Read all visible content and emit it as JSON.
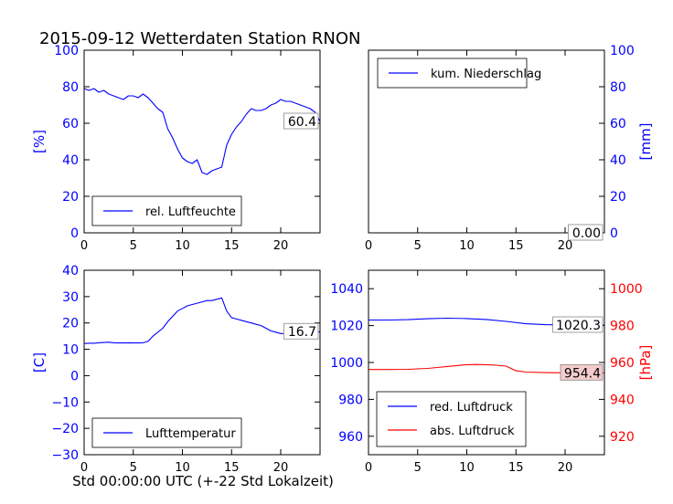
{
  "title": "2015-09-12 Wetterdaten Station RNON",
  "footer_xlabel": "Std 00:00:00 UTC (+-22 Std Lokalzeit)",
  "colors": {
    "blue": "#0000ff",
    "red": "#ff0000",
    "black": "#000000",
    "annotation_bg": "#f4cccc"
  },
  "chart_data": [
    {
      "id": "humidity",
      "type": "line",
      "ylabel": "[%]",
      "ylabel_color": "#0000ff",
      "xlim": [
        0,
        24
      ],
      "ylim": [
        0,
        100
      ],
      "xticks": [
        "0",
        "5",
        "10",
        "15",
        "20"
      ],
      "yticks": [
        "0",
        "20",
        "40",
        "60",
        "80",
        "100"
      ],
      "ytick_color": "#0000ff",
      "legend": {
        "placement": "lower-left",
        "entries": [
          "rel. Luftfeuchte"
        ]
      },
      "annotation": "60.4",
      "series": [
        {
          "name": "rel. Luftfeuchte",
          "color": "#0000ff",
          "x": [
            0,
            0.5,
            1,
            1.5,
            2,
            2.5,
            3,
            3.5,
            4,
            4.5,
            5,
            5.5,
            6,
            6.5,
            7,
            7.5,
            8,
            8.5,
            9,
            9.5,
            10,
            10.5,
            11,
            11.5,
            12,
            12.5,
            13,
            13.5,
            14,
            14.5,
            15,
            15.5,
            16,
            16.5,
            17,
            17.5,
            18,
            18.5,
            19,
            19.5,
            20,
            20.5,
            21,
            21.5,
            22,
            22.5,
            23,
            23.5,
            24
          ],
          "y": [
            79,
            78,
            79,
            77,
            78,
            76,
            75,
            74,
            73,
            75,
            75,
            74,
            76,
            74,
            71,
            68,
            66,
            57,
            52,
            46,
            41,
            39,
            38,
            40,
            33,
            32,
            34,
            35,
            36,
            48,
            54,
            58,
            61,
            65,
            68,
            67,
            67,
            68,
            70,
            71,
            73,
            72,
            72,
            71,
            70,
            69,
            68,
            66,
            61
          ]
        }
      ]
    },
    {
      "id": "precipitation",
      "type": "line",
      "ylabel": "[mm]",
      "ylabel_color": "#0000ff",
      "xlim": [
        0,
        24
      ],
      "ylim": [
        0,
        100
      ],
      "xticks": [
        "0",
        "5",
        "10",
        "15",
        "20"
      ],
      "yticks": [
        "0",
        "20",
        "40",
        "60",
        "80",
        "100"
      ],
      "ytick_color": "#0000ff",
      "y_axis_side": "right",
      "legend": {
        "placement": "top-left",
        "entries": [
          "kum. Niederschlag"
        ]
      },
      "annotation": "0.00",
      "series": [
        {
          "name": "kum. Niederschlag",
          "color": "#0000ff",
          "x": [
            0,
            24
          ],
          "y": [
            0,
            0
          ]
        }
      ]
    },
    {
      "id": "temperature",
      "type": "line",
      "ylabel": "[C]",
      "ylabel_color": "#0000ff",
      "xlim": [
        0,
        24
      ],
      "ylim": [
        -30,
        40
      ],
      "xticks": [
        "0",
        "5",
        "10",
        "15",
        "20"
      ],
      "yticks": [
        "−30",
        "−20",
        "−10",
        "0",
        "10",
        "20",
        "30",
        "40"
      ],
      "ytick_color": "#0000ff",
      "legend": {
        "placement": "lower-left",
        "entries": [
          "Lufttemperatur"
        ]
      },
      "annotation": "16.7",
      "series": [
        {
          "name": "Lufttemperatur",
          "color": "#0000ff",
          "x": [
            0,
            0.5,
            1,
            1.5,
            2,
            2.5,
            3,
            3.5,
            4,
            4.5,
            5,
            5.5,
            6,
            6.5,
            7,
            7.5,
            8,
            8.5,
            9,
            9.5,
            10,
            10.5,
            11,
            11.5,
            12,
            12.5,
            13,
            13.5,
            14,
            14.5,
            15,
            15.5,
            16,
            16.5,
            17,
            17.5,
            18,
            18.5,
            19,
            19.5,
            20,
            20.5,
            21,
            21.5,
            22,
            22.5,
            23,
            23.5,
            24
          ],
          "y": [
            12.2,
            12.3,
            12.3,
            12.5,
            12.6,
            12.7,
            12.5,
            12.4,
            12.4,
            12.5,
            12.4,
            12.4,
            12.5,
            13.0,
            15.0,
            16.5,
            18.0,
            20.5,
            22.5,
            24.5,
            25.5,
            26.5,
            27.0,
            27.5,
            28.0,
            28.5,
            28.5,
            29.0,
            29.5,
            24.5,
            22.0,
            21.5,
            21.0,
            20.5,
            20.0,
            19.5,
            19.0,
            18.0,
            17.0,
            16.5,
            16.0,
            16.0,
            15.8,
            16.0,
            15.7,
            15.8,
            15.8,
            16.2,
            16.7
          ]
        }
      ]
    },
    {
      "id": "pressure",
      "type": "line",
      "ylabel": "[hPa]",
      "ylabel_color": "#ff0000",
      "xlim": [
        0,
        24
      ],
      "ylim": [
        950,
        1050
      ],
      "ylim_right": [
        910,
        1010
      ],
      "xticks": [
        "0",
        "5",
        "10",
        "15",
        "20"
      ],
      "yticks": [
        "960",
        "980",
        "1000",
        "1020",
        "1040"
      ],
      "ytick_color": "#0000ff",
      "yticks_right": [
        "920",
        "940",
        "960",
        "980",
        "1000"
      ],
      "ytick_right_color": "#ff0000",
      "legend": {
        "placement": "lower-left",
        "entries": [
          "red. Luftdruck",
          "abs. Luftdruck"
        ]
      },
      "annotations": [
        "1020.3",
        "954.4"
      ],
      "series": [
        {
          "name": "red. Luftdruck",
          "color": "#0000ff",
          "x": [
            0,
            2,
            4,
            6,
            8,
            10,
            12,
            14,
            16,
            18,
            20,
            22,
            24
          ],
          "y": [
            1023.0,
            1023.0,
            1023.2,
            1023.7,
            1024.0,
            1023.8,
            1023.3,
            1022.3,
            1021.0,
            1020.5,
            1020.3,
            1020.3,
            1020.3
          ]
        },
        {
          "name": "abs. Luftdruck",
          "color": "#ff0000",
          "axis": "right",
          "x": [
            0,
            2,
            4,
            6,
            7,
            8,
            9,
            10,
            11,
            12,
            13,
            14,
            15,
            16,
            18,
            20,
            22,
            24
          ],
          "y": [
            956.2,
            956.2,
            956.3,
            956.8,
            957.3,
            957.8,
            958.3,
            958.8,
            958.9,
            958.8,
            958.5,
            958.0,
            955.5,
            954.8,
            954.5,
            954.4,
            954.4,
            954.4
          ]
        }
      ]
    }
  ]
}
